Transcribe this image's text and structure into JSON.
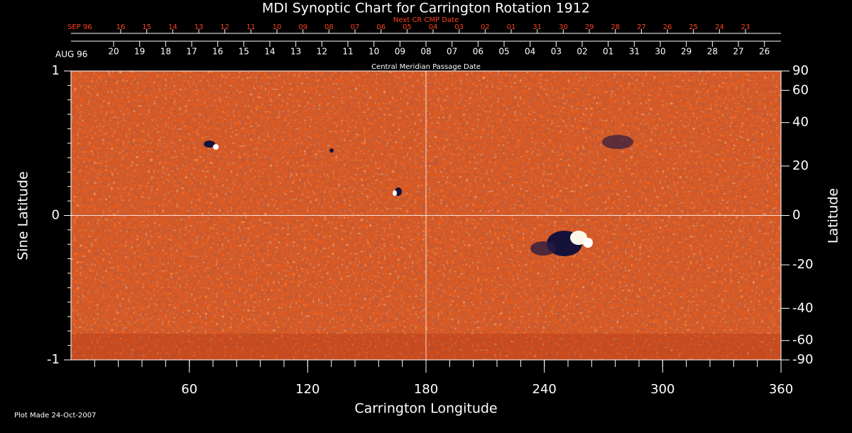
{
  "chart_data": {
    "type": "synoptic-map",
    "title": "MDI Synoptic Chart for Carrington Rotation 1912",
    "xlabel": "Carrington Longitude",
    "xlim": [
      0,
      360
    ],
    "xticks": [
      60,
      120,
      180,
      240,
      300,
      360
    ],
    "ylabel": "Sine Latitude",
    "ylim": [
      -1,
      1
    ],
    "yticks": [
      -1,
      0,
      1
    ],
    "y2label": "Latitude",
    "y2scale": "sine",
    "y2ticks": [
      90,
      60,
      40,
      20,
      0,
      -20,
      -40,
      -60,
      -90
    ],
    "top_axes": [
      {
        "label": "Next CR CMP Date",
        "prefix": "SEP 96",
        "color": "#ff4020",
        "ticks": [
          {
            "value": 25.2,
            "label": "16"
          },
          {
            "value": 38.4,
            "label": "15"
          },
          {
            "value": 51.6,
            "label": "14"
          },
          {
            "value": 64.8,
            "label": "13"
          },
          {
            "value": 78.0,
            "label": "12"
          },
          {
            "value": 91.2,
            "label": "11"
          },
          {
            "value": 104.4,
            "label": "10"
          },
          {
            "value": 117.6,
            "label": "09"
          },
          {
            "value": 130.8,
            "label": "08"
          },
          {
            "value": 144.0,
            "label": "07"
          },
          {
            "value": 157.2,
            "label": "06"
          },
          {
            "value": 170.4,
            "label": "05"
          },
          {
            "value": 183.6,
            "label": "04"
          },
          {
            "value": 196.8,
            "label": "03"
          },
          {
            "value": 210.0,
            "label": "02"
          },
          {
            "value": 223.2,
            "label": "01"
          },
          {
            "value": 236.4,
            "label": "31"
          },
          {
            "value": 249.6,
            "label": "30"
          },
          {
            "value": 262.8,
            "label": "29"
          },
          {
            "value": 276.0,
            "label": "28"
          },
          {
            "value": 289.2,
            "label": "27"
          },
          {
            "value": 302.4,
            "label": "26"
          },
          {
            "value": 315.6,
            "label": "25"
          },
          {
            "value": 328.8,
            "label": "24"
          },
          {
            "value": 342.0,
            "label": "23"
          }
        ]
      },
      {
        "label": "Central Meridian Passage Date",
        "prefix": "AUG 96",
        "color": "#ffffff",
        "ticks": [
          {
            "value": 21.6,
            "label": "20"
          },
          {
            "value": 34.8,
            "label": "19"
          },
          {
            "value": 48.0,
            "label": "18"
          },
          {
            "value": 61.2,
            "label": "17"
          },
          {
            "value": 74.4,
            "label": "16"
          },
          {
            "value": 87.6,
            "label": "15"
          },
          {
            "value": 100.8,
            "label": "14"
          },
          {
            "value": 114.0,
            "label": "13"
          },
          {
            "value": 127.2,
            "label": "12"
          },
          {
            "value": 140.4,
            "label": "11"
          },
          {
            "value": 153.6,
            "label": "10"
          },
          {
            "value": 166.8,
            "label": "09"
          },
          {
            "value": 180.0,
            "label": "08"
          },
          {
            "value": 193.2,
            "label": "07"
          },
          {
            "value": 206.4,
            "label": "06"
          },
          {
            "value": 219.6,
            "label": "05"
          },
          {
            "value": 232.8,
            "label": "04"
          },
          {
            "value": 246.0,
            "label": "03"
          },
          {
            "value": 259.2,
            "label": "02"
          },
          {
            "value": 272.4,
            "label": "01"
          },
          {
            "value": 285.6,
            "label": "31"
          },
          {
            "value": 298.8,
            "label": "30"
          },
          {
            "value": 312.0,
            "label": "29"
          },
          {
            "value": 325.2,
            "label": "28"
          },
          {
            "value": 338.4,
            "label": "27"
          },
          {
            "value": 351.6,
            "label": "26"
          }
        ]
      }
    ],
    "footer": "Plot Made 24-Oct-2007"
  }
}
